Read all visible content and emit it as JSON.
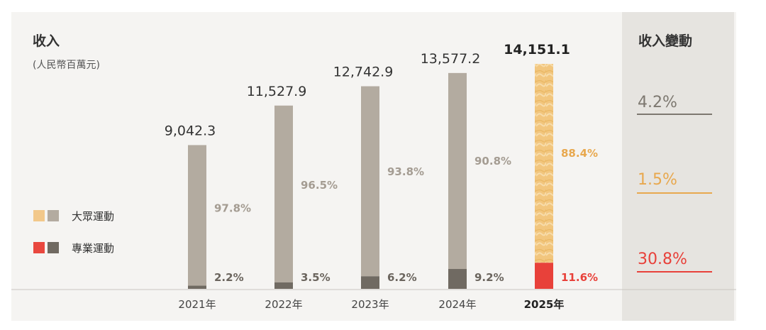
{
  "title": "收入",
  "unit": "(人民幣百萬元)",
  "legend": [
    {
      "label": "大眾運動",
      "color_a": "#f2c88a",
      "color_b": "#b3aba0"
    },
    {
      "label": "專業運動",
      "color_a": "#e9483f",
      "color_b": "#706a62"
    }
  ],
  "side_title": "收入變動",
  "changes": [
    {
      "value": "4.2%",
      "color": "#7d7870"
    },
    {
      "value": "1.5%",
      "color": "#e8a84e"
    },
    {
      "value": "30.8%",
      "color": "#e8413a"
    }
  ],
  "chart_data": {
    "type": "bar",
    "stacked": true,
    "categories": [
      "2021年",
      "2022年",
      "2023年",
      "2024年",
      "2025年"
    ],
    "totals": [
      9042.3,
      11527.9,
      12742.9,
      13577.2,
      14151.1
    ],
    "total_labels": [
      "9,042.3",
      "11,527.9",
      "12,742.9",
      "13,577.2",
      "14,151.1"
    ],
    "series": [
      {
        "name": "專業運動",
        "values_pct": [
          2.2,
          3.5,
          6.2,
          9.2,
          11.6
        ],
        "labels": [
          "2.2%",
          "3.5%",
          "6.2%",
          "9.2%",
          "11.6%"
        ]
      },
      {
        "name": "大眾運動",
        "values_pct": [
          97.8,
          96.5,
          93.8,
          90.8,
          88.4
        ],
        "labels": [
          "97.8%",
          "96.5%",
          "93.8%",
          "90.8%",
          "88.4%"
        ]
      }
    ],
    "highlight_year_index": 4,
    "colors": {
      "mass": "#b3aba0",
      "pro": "#706a62",
      "mass_highlight": "#f2c67e",
      "pro_highlight": "#e8413a",
      "mass_label": "#a49c92",
      "mass_label_highlight": "#e8a84e",
      "pro_label": "#6b655e",
      "pro_label_highlight": "#e8413a"
    }
  }
}
